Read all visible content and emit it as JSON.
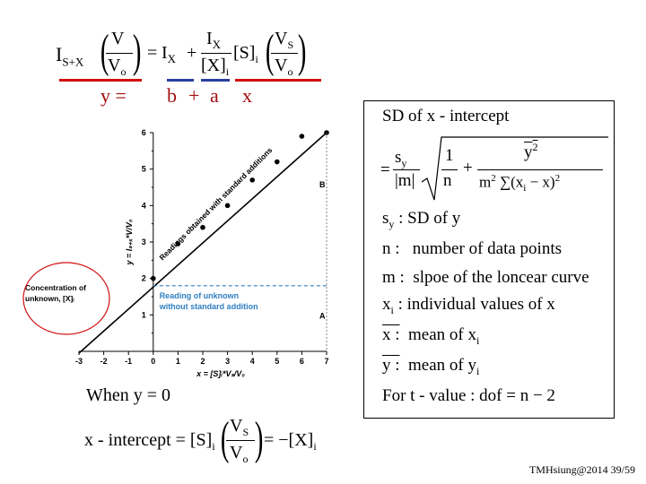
{
  "equation": {
    "I": "I",
    "sub_sx": "S+X",
    "V": "V",
    "Vo": "V",
    "sub_o": "o",
    "eq": "=",
    "IX": "I",
    "sub_x": "X",
    "plus": "+",
    "Xi": "[X]",
    "sub_i": "i",
    "Si": "[S]",
    "VS": "V",
    "sub_s": "S",
    "colors": {
      "y_bar": "#d01010",
      "b_bar": "#2a3f9d",
      "a_bar": "#d01010"
    }
  },
  "linear_form": {
    "y": "y =",
    "b": "b",
    "plus": "+",
    "a": "a",
    "x": "x"
  },
  "chart_data": {
    "type": "scatter",
    "xlabel": "x = [S]ᵢ*Vₛ/V₀",
    "ylabel": "y = Iₛ₊ₓ*V/V₀",
    "xlim": [
      -3,
      7
    ],
    "ylim": [
      0,
      6
    ],
    "x_ticks": [
      "-3",
      "-2",
      "-1",
      "0",
      "1",
      "2",
      "3",
      "4",
      "5",
      "6",
      "7"
    ],
    "y_ticks": [
      "1",
      "2",
      "3",
      "4",
      "5",
      "6"
    ],
    "series": [
      {
        "x": [
          0,
          1,
          2,
          3,
          4,
          5,
          6,
          7
        ],
        "y": [
          2.0,
          2.95,
          3.4,
          4.0,
          4.7,
          5.2,
          5.9,
          6.0
        ]
      }
    ],
    "fit_line": {
      "x": [
        -3,
        7
      ],
      "y": [
        -0.05,
        6.0
      ]
    },
    "dashed_level": 1.8,
    "annotations": {
      "line_label": "Readings obtained with standard additions",
      "reading_label": "Reading of unknown without standard addition",
      "concentration_label": "Concentration of unknown, [X]ᵢ",
      "label_A": "A",
      "label_B": "B"
    },
    "colors": {
      "data": "#000000",
      "dashed": "#2f7fc1",
      "annotation": "#2f7fc1",
      "ellipse": "#d01010"
    }
  },
  "when_y0": "When y = 0",
  "x_intercept": {
    "lhs": "x - intercept = [S]",
    "sub_i": "i",
    "VS": "V",
    "sub_s": "S",
    "Vo": "V",
    "sub_o": "o",
    "rhs": "= −[X]",
    "sub_i2": "i"
  },
  "sd_box": {
    "title": "SD of  x - intercept",
    "eq": "=",
    "sy": "s",
    "sub_y": "y",
    "abs_m": "|m|",
    "one": "1",
    "n": "n",
    "plus": "+",
    "ybar2": "y",
    "sup2": "2",
    "m2": "m",
    "sum_term": "∑(x",
    "minus_x": "− x)",
    "lines": [
      {
        "sym": "s",
        "sub": "y",
        "desc": ":  SD of  y"
      },
      {
        "sym": "n :",
        "sub": "",
        "desc": "number of data points"
      },
      {
        "sym": "m :",
        "sub": "",
        "desc": "slpoe of the loncear curve"
      },
      {
        "sym": "x",
        "sub": "i",
        "desc": ":  individual values of  x"
      },
      {
        "sym": "x :",
        "sub": "",
        "desc": "mean of  x"
      },
      {
        "sym": "y :",
        "sub": "",
        "desc": "mean of  y"
      }
    ],
    "mean_x_sub": "i",
    "mean_y_sub": "i",
    "last": "For t - value : dof = n − 2"
  },
  "footer": "TMHsiung@2014 39/59"
}
